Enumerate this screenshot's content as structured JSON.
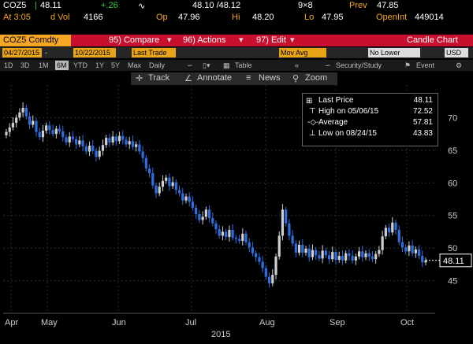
{
  "quote": {
    "ticker": "COZ5",
    "last": "48.11",
    "change": "+.26",
    "bid_ask": "48.10 /48.12",
    "size": "9×8",
    "prev_label": "Prev",
    "prev": "47.85",
    "time": "At 3:05",
    "dvol_label": "d Vol",
    "dvol": "4166",
    "op_label": "Op",
    "op": "47.96",
    "hi_label": "Hi",
    "hi": "48.20",
    "lo_label": "Lo",
    "lo": "47.95",
    "oi_label": "OpenInt",
    "oi": "449014"
  },
  "toolbar": {
    "security": "COZ5 Comdty",
    "compare": "95) Compare",
    "actions": "96) Actions",
    "edit": "97) Edit",
    "chart_name": "Candle Chart",
    "start_date": "04/27/2015",
    "end_date": "10/22/2015",
    "price_type": "Last Trade",
    "mov_avg": "Mov Avg",
    "lower_chart": "No Lower Chart",
    "currency": "USD",
    "periods": [
      "1D",
      "3D",
      "1M",
      "6M",
      "YTD",
      "1Y",
      "5Y",
      "Max"
    ],
    "frequency": "Daily",
    "table": "Table",
    "security_study": "Security/Study",
    "event": "Event",
    "track": "Track",
    "annotate": "Annotate",
    "news": "News",
    "zoom": "Zoom"
  },
  "legend": {
    "items": [
      {
        "label": "Last Price",
        "value": "48.11"
      },
      {
        "label": "High on 05/06/15",
        "value": "72.52"
      },
      {
        "label": "Average",
        "value": "57.81"
      },
      {
        "label": "Low on 08/24/15",
        "value": "43.83"
      }
    ]
  },
  "colors": {
    "up": "#cfcfcf",
    "down": "#2e6fe0",
    "accent": "#f5a623",
    "bar": "#c8102e"
  },
  "chart_data": {
    "type": "candlestick",
    "ylim": [
      40,
      75
    ],
    "yticks": [
      "45",
      "50",
      "55",
      "60",
      "65",
      "70"
    ],
    "xticks": [
      "Apr",
      "May",
      "Jun",
      "Jul",
      "Aug",
      "Sep",
      "Oct"
    ],
    "year_label": "2015",
    "last_label": "48.11",
    "close": [
      67.8,
      68.5,
      69.2,
      70.0,
      70.8,
      71.5,
      70.2,
      68.9,
      69.5,
      67.8,
      67.0,
      68.0,
      68.8,
      68.1,
      67.5,
      68.3,
      67.9,
      67.0,
      66.2,
      67.1,
      66.7,
      65.9,
      66.5,
      65.6,
      64.8,
      65.7,
      64.9,
      64.0,
      64.9,
      65.8,
      66.9,
      66.2,
      67.1,
      66.4,
      67.2,
      66.6,
      65.9,
      66.4,
      65.5,
      65.9,
      64.8,
      63.8,
      62.2,
      61.5,
      59.6,
      58.4,
      59.4,
      60.3,
      60.8,
      59.5,
      60.1,
      58.9,
      58.4,
      57.3,
      57.9,
      57.1,
      56.2,
      55.2,
      54.3,
      54.8,
      55.9,
      54.6,
      53.8,
      52.9,
      51.9,
      52.5,
      51.7,
      52.8,
      51.6,
      51.4,
      51.1,
      52.2,
      50.9,
      50.1,
      49.2,
      48.6,
      47.9,
      46.9,
      45.6,
      44.6,
      45.9,
      48.7,
      51.9,
      55.9,
      53.8,
      51.9,
      50.7,
      49.3,
      50.5,
      49.3,
      49.9,
      48.6,
      49.7,
      48.9,
      48.4,
      49.6,
      48.9,
      48.3,
      49.4,
      48.2,
      48.8,
      48.1,
      49.2,
      48.8,
      48.1,
      48.7,
      49.5,
      48.6,
      49.2,
      48.7,
      48.3,
      49.1,
      49.7,
      51.8,
      53.1,
      52.4,
      53.9,
      52.8,
      50.9,
      50.1,
      49.5,
      50.4,
      49.2,
      49.8,
      48.8,
      47.8,
      48.11
    ]
  }
}
